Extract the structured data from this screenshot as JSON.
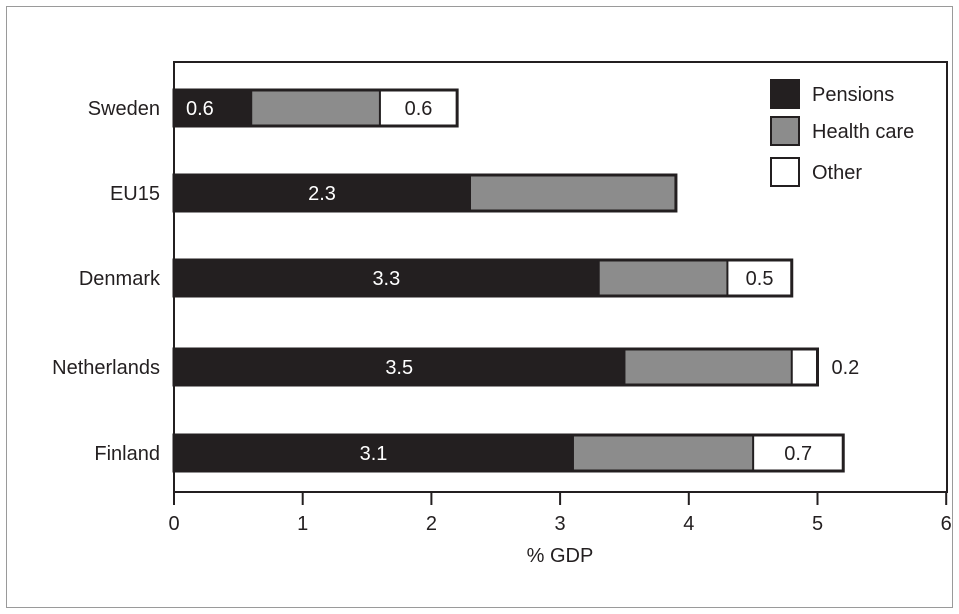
{
  "chart_data": {
    "type": "bar",
    "orientation": "horizontal",
    "stacked": true,
    "categories": [
      "Sweden",
      "EU15",
      "Denmark",
      "Netherlands",
      "Finland"
    ],
    "series": [
      {
        "name": "Pensions",
        "color": "#231f20",
        "values": [
          0.6,
          2.3,
          3.3,
          3.5,
          3.1
        ],
        "labels": [
          "0.6",
          "2.3",
          "3.3",
          "3.5",
          "3.1"
        ]
      },
      {
        "name": "Health care",
        "color": "#8c8c8c",
        "values": [
          1.0,
          1.6,
          1.0,
          1.3,
          1.4
        ],
        "labels": [
          "",
          "",
          "",
          "",
          ""
        ]
      },
      {
        "name": "Other",
        "color": "#ffffff",
        "values": [
          0.6,
          0.0,
          0.5,
          0.2,
          0.7
        ],
        "labels": [
          "0.6",
          "",
          "0.5",
          "0.2",
          "0.7"
        ]
      }
    ],
    "xlabel": "% GDP",
    "ylabel": "",
    "xlim": [
      0,
      6
    ],
    "xticks": [
      "0",
      "1",
      "2",
      "3",
      "4",
      "5",
      "6"
    ],
    "grid": false,
    "legend_position": "top-right"
  }
}
